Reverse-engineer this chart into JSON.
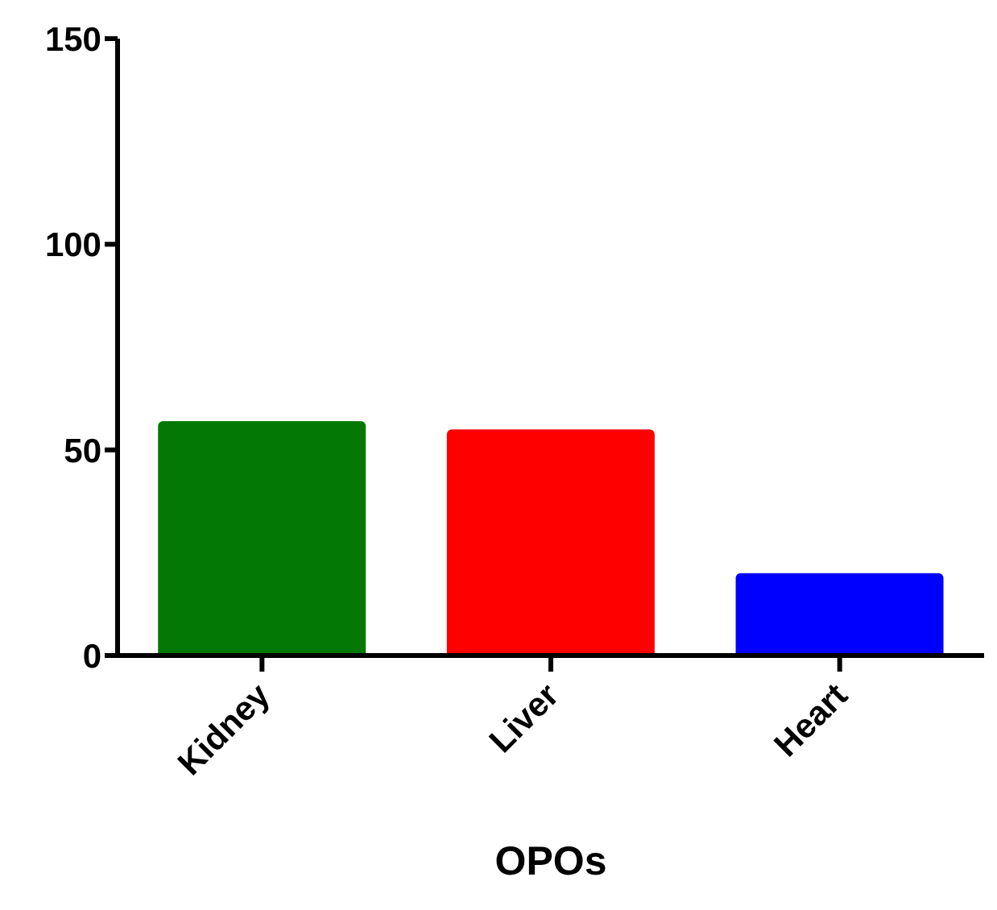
{
  "chart_data": {
    "type": "bar",
    "xlabel": "OPOs",
    "categories": [
      "Kidney",
      "Liver",
      "Heart"
    ],
    "values": [
      57,
      55,
      20
    ],
    "colors": [
      "#047804",
      "#fe0000",
      "#0000fe"
    ],
    "ylim": [
      0,
      150
    ],
    "yticks": [
      0,
      50,
      100,
      150
    ],
    "grid": false
  }
}
